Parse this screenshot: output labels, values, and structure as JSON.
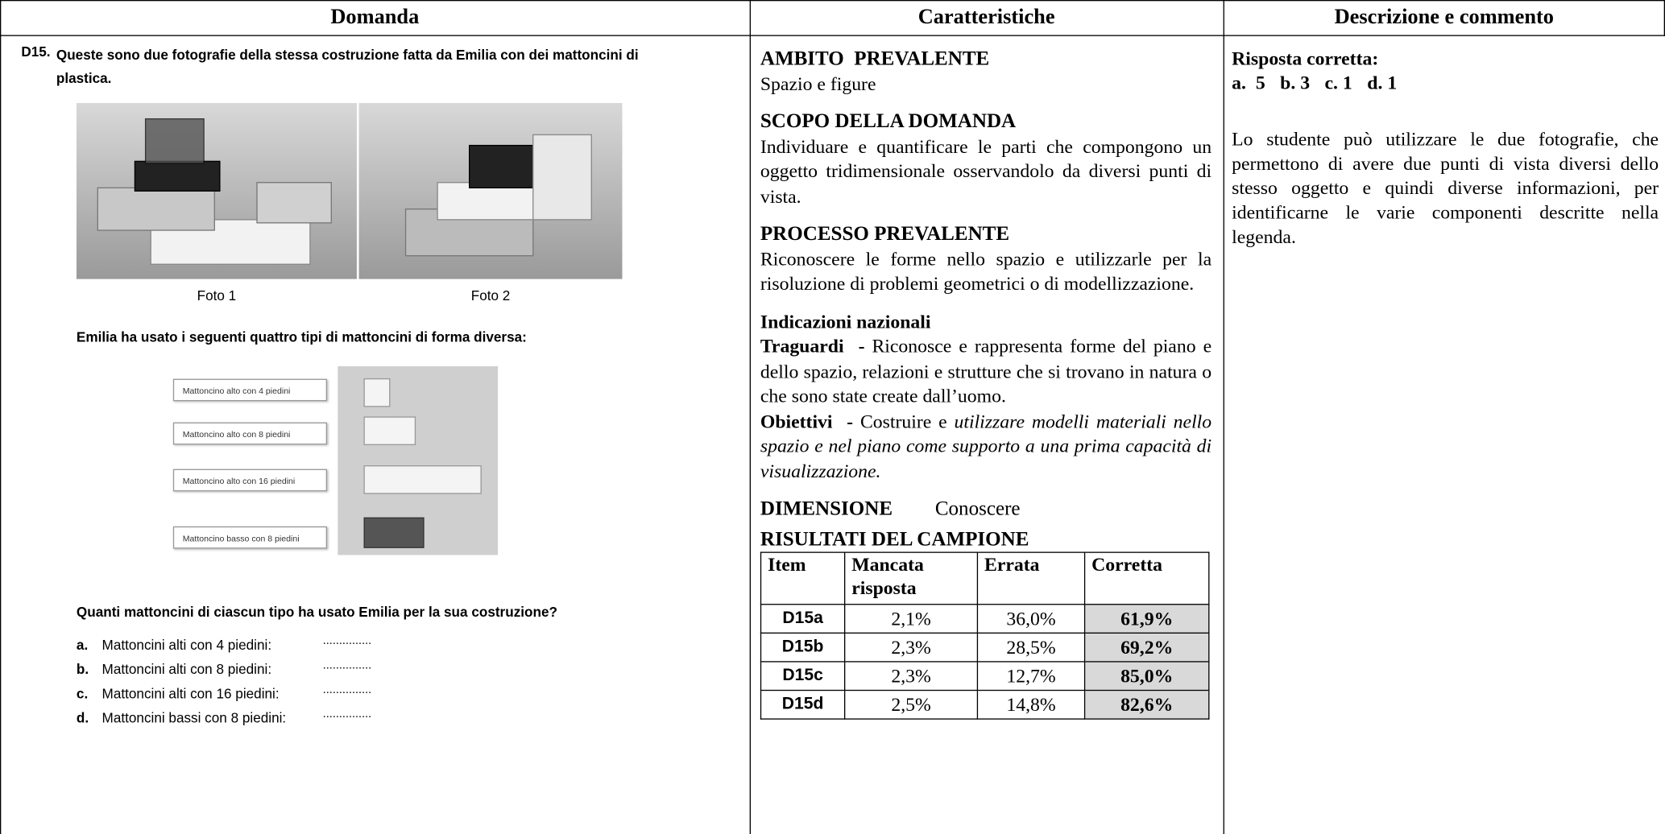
{
  "header": {
    "domanda": "Domanda",
    "caratteristiche": "Caratteristiche",
    "descrizione": "Descrizione e commento"
  },
  "domanda": {
    "number": "D15.",
    "intro": "Queste sono due fotografie della stessa costruzione fatta da Emilia con dei mattoncini di plastica.",
    "photos": [
      "Foto 1",
      "Foto 2"
    ],
    "bricks_intro": "Emilia ha usato i seguenti quattro tipi di mattoncini di forma diversa:",
    "bricks": [
      "Mattoncino alto con 4 piedini",
      "Mattoncino alto con 8 piedini",
      "Mattoncino alto con 16 piedini",
      "Mattoncino basso con 8 piedini"
    ],
    "question": "Quanti mattoncini di ciascun tipo ha usato Emilia per la sua costruzione?",
    "options": [
      {
        "letter": "a.",
        "text": "Mattoncini alti con 4 piedini:",
        "blank": "..............."
      },
      {
        "letter": "b.",
        "text": "Mattoncini alti con 8 piedini:",
        "blank": "..............."
      },
      {
        "letter": "c.",
        "text": "Mattoncini alti con 16 piedini:",
        "blank": "..............."
      },
      {
        "letter": "d.",
        "text": "Mattoncini bassi con 8 piedini:",
        "blank": "..............."
      }
    ]
  },
  "caratteristiche": {
    "ambito": {
      "title": "AMBITO  PREVALENTE",
      "text": "Spazio e figure"
    },
    "scopo": {
      "title": "SCOPO DELLA DOMANDA",
      "text": "Individuare e quantificare le parti che compongono un oggetto tridimensionale osservandolo da diversi punti di vista."
    },
    "processo": {
      "title": "PROCESSO PREVALENTE",
      "text": "Riconoscere le forme nello spazio e utilizzarle per la risoluzione di problemi geometrici o di modellizzazione."
    },
    "indicazioni": {
      "title": "Indicazioni nazionali",
      "traguardi": {
        "label": "Traguardi  -",
        "text": "Riconosce e rappresenta forme del piano e dello spazio, relazioni e strutture che si trovano in natura o che sono state create dall’uomo."
      },
      "obiettivi": {
        "label": "Obiettivi  -",
        "text": "Costruire e",
        "italic": "utilizzare modelli materiali nello spazio e nel piano come supporto a una prima capacità di visualizzazione."
      }
    },
    "dimensione": {
      "label": "DIMENSIONE",
      "text": "Conoscere"
    },
    "risultati": {
      "title": "RISULTATI DEL CAMPIONE",
      "columns": [
        "Item",
        "Mancata risposta",
        "Errata",
        "Corretta"
      ],
      "rows": [
        [
          "D15a",
          "2,1%",
          "36,0%",
          "61,9%"
        ],
        [
          "D15b",
          "2,3%",
          "28,5%",
          "69,2%"
        ],
        [
          "D15c",
          "2,3%",
          "12,7%",
          "85,0%"
        ],
        [
          "D15d",
          "2,5%",
          "14,8%",
          "82,6%"
        ]
      ]
    }
  },
  "descrizione": {
    "risposta_title": "Risposta corretta:",
    "risposta": [
      "a.  5",
      "b. 3",
      "c. 1",
      "d. 1"
    ],
    "commento": "Lo studente può utilizzare le due fotografie, che permettono di avere due punti di vista diversi dello stesso oggetto e quindi diverse informazioni, per identificarne le varie componenti descritte nella legenda."
  }
}
